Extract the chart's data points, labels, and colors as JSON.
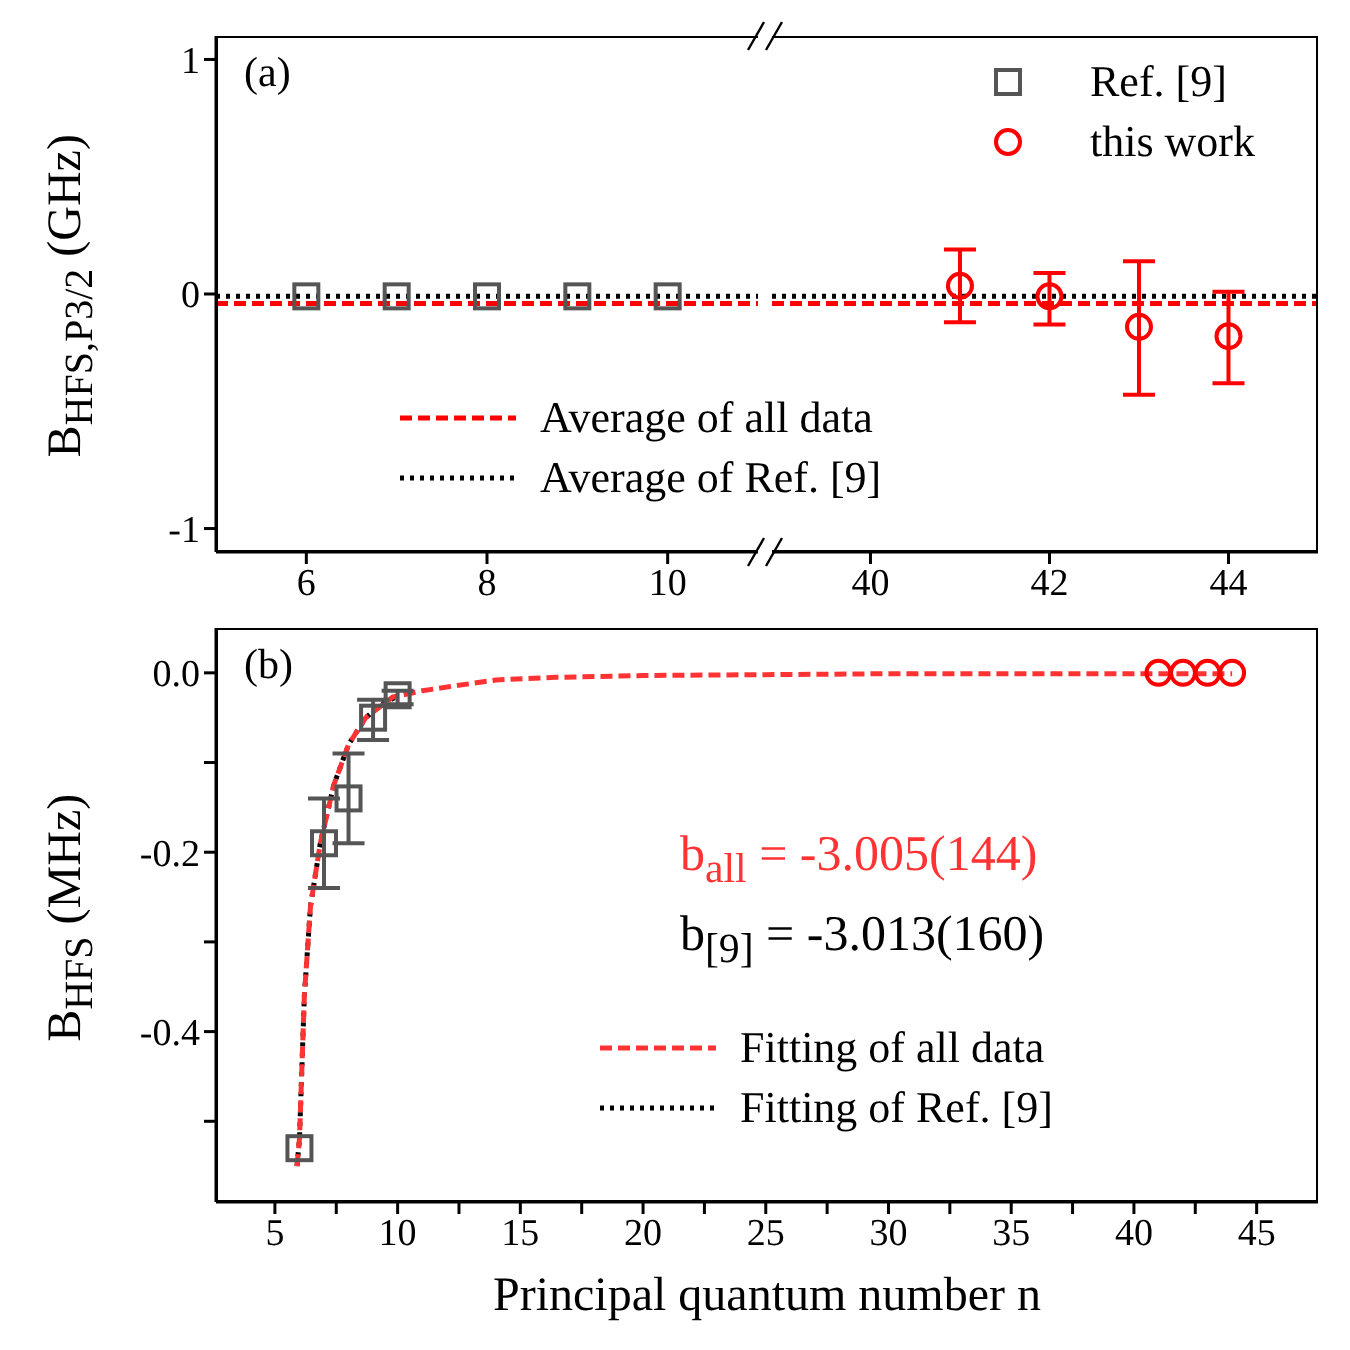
{
  "chart_data": [
    {
      "type": "scatter",
      "xlim": [
        5,
        11
      ],
      "xticks": [
        6,
        8,
        10
      ],
      "ylim": [
        -1.1,
        1.1
      ],
      "yticks": [
        -1,
        0,
        1
      ],
      "ylabel": "B$_{HFS,P}$$_{3/2}$ (GHz)",
      "legend": "bottom",
      "annotations": [
        "(a)"
      ],
      "series": [
        {
          "color": "#555555",
          "marker": "square",
          "x": [
            6,
            7,
            8,
            9,
            10
          ],
          "values": [
            -0.01,
            -0.01,
            -0.01,
            -0.01,
            -0.01
          ]
        }
      ],
      "ref_lines": [
        {
          "axis": "y",
          "value": -0.04,
          "label": "Average of all data",
          "color": "#ff0000",
          "line_style": "dashed"
        },
        {
          "axis": "y",
          "value": -0.01,
          "label": "Average of Ref. [9]",
          "color": "#000000",
          "line_style": "dotted"
        }
      ]
    },
    {
      "type": "scatter",
      "xlim": [
        38.9,
        45
      ],
      "xticks": [
        40,
        42,
        44
      ],
      "ylim": [
        -1.1,
        1.1
      ],
      "yticks": [
        -1,
        0,
        1
      ],
      "tick_labels": "x",
      "legend": "top right",
      "series": [
        {
          "name": "Ref. [9]",
          "color": "#555555",
          "marker": "square"
        },
        {
          "name": "this work",
          "color": "#ff0000",
          "marker": "circle",
          "x": [
            41,
            42,
            43,
            44
          ],
          "values": [
            0.035,
            -0.01,
            -0.14,
            -0.18
          ],
          "errors": [
            [
              -0.12,
              0.19
            ],
            [
              -0.13,
              0.09
            ],
            [
              -0.43,
              0.14
            ],
            [
              -0.38,
              0.01
            ]
          ]
        }
      ],
      "ref_lines": [
        {
          "axis": "y",
          "value": -0.04,
          "color": "#ff0000",
          "line_style": "dashed"
        },
        {
          "axis": "y",
          "value": -0.01,
          "color": "#000000",
          "line_style": "dotted"
        }
      ]
    },
    {
      "type": "line",
      "xlabel": "Principal quantum number n",
      "ylabel": "B$_{HFS}$ (MHz)",
      "xlim": [
        2.6,
        47.5
      ],
      "xticks": [
        5,
        {
          "value": 7.5,
          "label": null
        },
        10,
        {
          "value": 12.5,
          "label": null
        },
        15,
        {
          "value": 17.5,
          "label": null
        },
        20,
        {
          "value": 22.5,
          "label": null
        },
        25,
        {
          "value": 27.5,
          "label": null
        },
        30,
        {
          "value": 32.5,
          "label": null
        },
        35,
        {
          "value": 37.5,
          "label": null
        },
        40,
        {
          "value": 42.5,
          "label": null
        },
        45
      ],
      "ylim": [
        -0.59,
        0.05
      ],
      "yticks": [
        {
          "value": -0.5,
          "label": null
        },
        -0.4,
        {
          "value": -0.3,
          "label": null
        },
        -0.2,
        {
          "value": -0.1,
          "label": null
        },
        {
          "value": 0,
          "label": "0.0"
        }
      ],
      "legend": "bottom",
      "annotations": [
        "(b)",
        "b$_{all}$ = -3.005(144)",
        "b$_{[9]}$ = -3.013(160)"
      ],
      "series": [
        {
          "name": "Fitting of all data",
          "color": "#ff3333",
          "line_style": "dashed",
          "x": [
            5.9,
            6,
            6.2,
            6.45,
            6.85,
            7.4,
            8,
            8.7,
            9.8,
            11,
            12.2,
            14,
            16.4,
            20,
            25,
            30,
            35,
            40,
            44
          ],
          "values": [
            -0.55,
            -0.52,
            -0.36,
            -0.26,
            -0.19,
            -0.125,
            -0.08,
            -0.05,
            -0.027,
            -0.02,
            -0.015,
            -0.008,
            -0.005,
            -0.003,
            -0.002,
            -0.001,
            -0.001,
            -0.001,
            -0.001
          ]
        },
        {
          "name": "Fitting of Ref. [9]",
          "color": "#000000",
          "line_style": "dotted",
          "x": [
            5.9,
            6,
            6.2,
            6.45,
            6.85,
            7.4,
            8,
            8.7,
            9.3,
            10
          ],
          "values": [
            -0.55,
            -0.52,
            -0.36,
            -0.26,
            -0.19,
            -0.125,
            -0.08,
            -0.05,
            -0.036,
            -0.026
          ]
        },
        {
          "type": "scatter",
          "color": "#555555",
          "marker": "square",
          "x": [
            6,
            7,
            8,
            9,
            10
          ],
          "values": [
            -0.53,
            -0.19,
            -0.14,
            -0.05,
            -0.025
          ],
          "errors": [
            null,
            [
              -0.24,
              -0.14
            ],
            [
              -0.19,
              -0.09
            ],
            [
              -0.075,
              -0.03
            ],
            [
              -0.035,
              -0.02
            ]
          ]
        },
        {
          "type": "scatter",
          "color": "#ff0000",
          "marker": "circle",
          "x": [
            41,
            42,
            43,
            44
          ],
          "values": [
            0,
            0,
            0,
            0
          ]
        }
      ]
    }
  ]
}
